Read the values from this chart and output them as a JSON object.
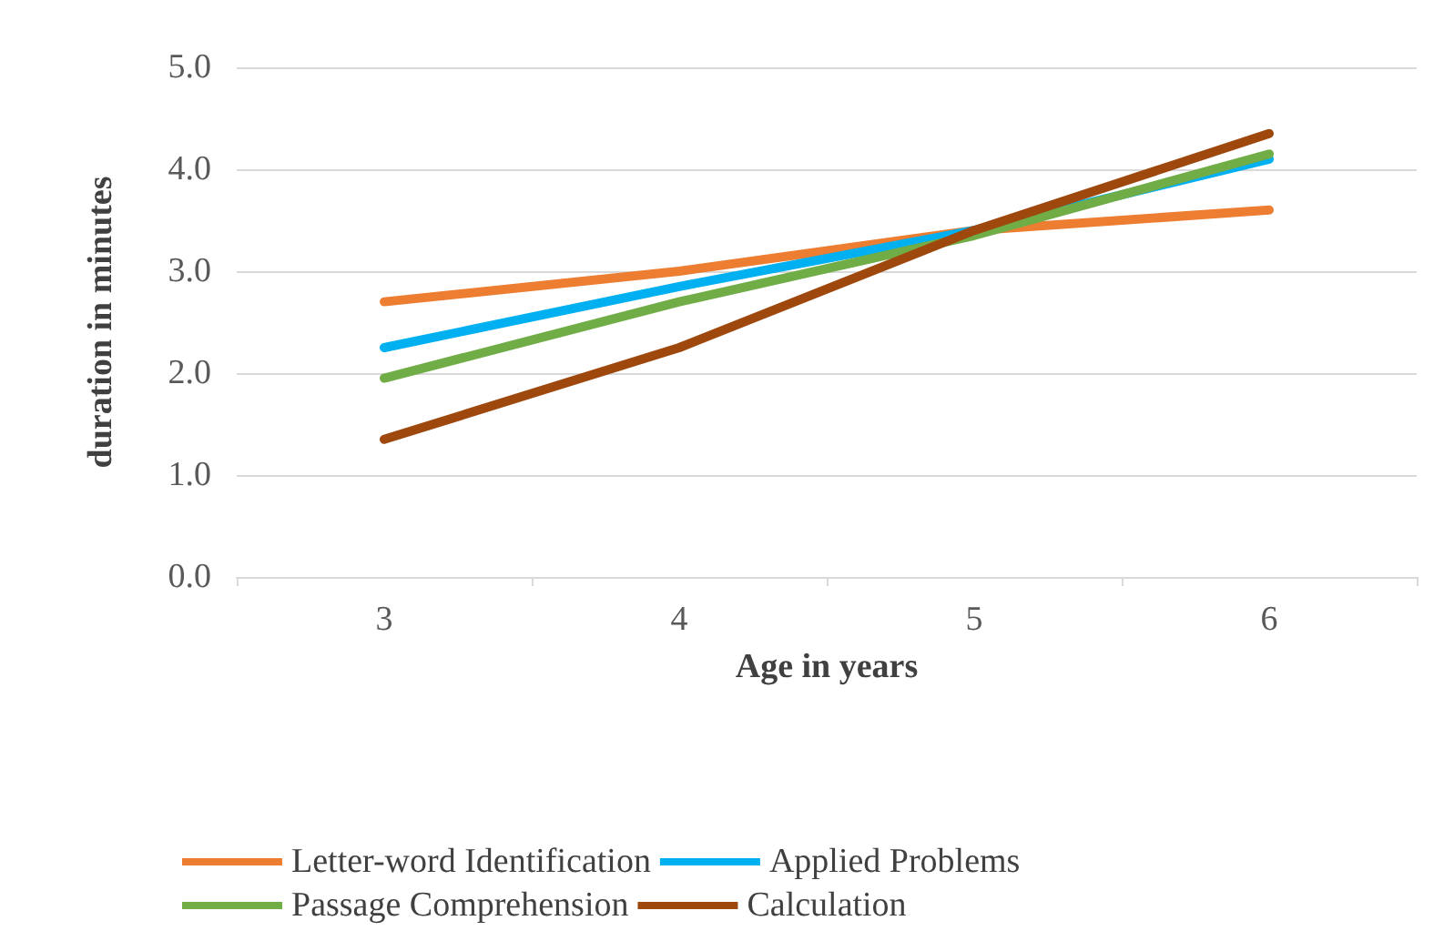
{
  "chart_data": {
    "type": "line",
    "xlabel": "Age in years",
    "ylabel": "duration in minutes",
    "categories": [
      "3",
      "4",
      "5",
      "6"
    ],
    "series": [
      {
        "name": "Letter-word Identification",
        "color": "#ed7d31",
        "values": [
          2.7,
          3.0,
          3.4,
          3.6
        ]
      },
      {
        "name": "Applied Problems",
        "color": "#00b0f0",
        "values": [
          2.25,
          2.85,
          3.4,
          4.1
        ]
      },
      {
        "name": "Passage Comprehension",
        "color": "#70ad47",
        "values": [
          1.95,
          2.7,
          3.35,
          4.15
        ]
      },
      {
        "name": "Calculation",
        "color": "#9e480e",
        "values": [
          1.35,
          2.25,
          3.4,
          4.35
        ]
      }
    ],
    "ylim": [
      0,
      5
    ],
    "yticks": [
      {
        "value": 0,
        "label": "0.0"
      },
      {
        "value": 1,
        "label": "1.0"
      },
      {
        "value": 2,
        "label": "2.0"
      },
      {
        "value": 3,
        "label": "3.0"
      },
      {
        "value": 4,
        "label": "4.0"
      },
      {
        "value": 5,
        "label": "5.0"
      }
    ],
    "grid": "y",
    "legend": "bottom",
    "marker": "none",
    "line_style": "solid"
  }
}
